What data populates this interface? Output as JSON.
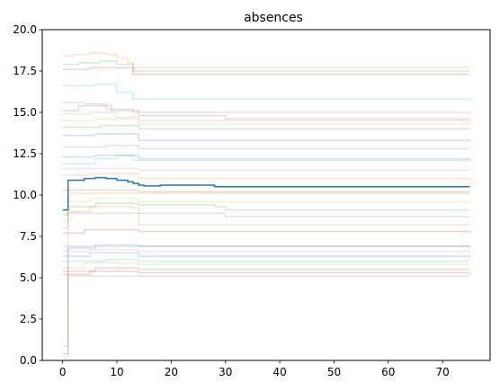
{
  "chart_data": {
    "type": "line",
    "title": "absences",
    "xlabel": "",
    "ylabel": "",
    "xlim": [
      -3.75,
      78.75
    ],
    "ylim": [
      0,
      20
    ],
    "xticks": [
      0,
      10,
      20,
      30,
      40,
      50,
      60,
      70
    ],
    "yticks": [
      0.0,
      2.5,
      5.0,
      7.5,
      10.0,
      12.5,
      15.0,
      17.5,
      20.0
    ],
    "ytick_labels": [
      "0.0",
      "2.5",
      "5.0",
      "7.5",
      "10.0",
      "12.5",
      "15.0",
      "17.5",
      "20.0"
    ],
    "grid": false,
    "legend": "none",
    "main_series": {
      "color": "#1f77b4",
      "points": [
        [
          0,
          9.1
        ],
        [
          0.8,
          9.1
        ],
        [
          1,
          10.9
        ],
        [
          4,
          11.0
        ],
        [
          6,
          11.05
        ],
        [
          8,
          11.0
        ],
        [
          10,
          10.9
        ],
        [
          12,
          10.8
        ],
        [
          13,
          10.7
        ],
        [
          14,
          10.6
        ],
        [
          15,
          10.55
        ],
        [
          18,
          10.6
        ],
        [
          25,
          10.6
        ],
        [
          28,
          10.5
        ],
        [
          30,
          10.5
        ],
        [
          75,
          10.5
        ]
      ]
    },
    "background_series": {
      "opacity": 0.22,
      "series": [
        {
          "color": "#ff7f0e",
          "points": [
            [
              0,
              18.4
            ],
            [
              2,
              18.5
            ],
            [
              5,
              18.6
            ],
            [
              8,
              18.5
            ],
            [
              10,
              18.3
            ],
            [
              12,
              18.0
            ],
            [
              13,
              17.7
            ],
            [
              15,
              17.7
            ],
            [
              75,
              17.7
            ]
          ]
        },
        {
          "color": "#2ca02c",
          "points": [
            [
              0,
              17.9
            ],
            [
              3,
              18.0
            ],
            [
              7,
              18.1
            ],
            [
              10,
              17.9
            ],
            [
              13,
              17.5
            ],
            [
              75,
              17.5
            ]
          ]
        },
        {
          "color": "#d62728",
          "points": [
            [
              0,
              17.6
            ],
            [
              5,
              17.7
            ],
            [
              13,
              17.3
            ],
            [
              75,
              17.3
            ]
          ]
        },
        {
          "color": "#17becf",
          "points": [
            [
              0,
              16.6
            ],
            [
              6,
              16.7
            ],
            [
              10,
              16.2
            ],
            [
              13,
              15.8
            ],
            [
              75,
              15.7
            ]
          ]
        },
        {
          "color": "#9467bd",
          "points": [
            [
              0,
              15.6
            ],
            [
              4,
              15.5
            ],
            [
              8,
              15.2
            ],
            [
              13,
              15.0
            ],
            [
              75,
              14.9
            ]
          ]
        },
        {
          "color": "#8c564b",
          "points": [
            [
              0,
              15.1
            ],
            [
              3,
              15.4
            ],
            [
              6,
              15.4
            ],
            [
              9,
              15.1
            ],
            [
              14,
              14.8
            ],
            [
              28,
              14.8
            ],
            [
              30,
              14.6
            ],
            [
              75,
              14.6
            ]
          ]
        },
        {
          "color": "#e377c2",
          "points": [
            [
              0,
              14.9
            ],
            [
              5,
              15.0
            ],
            [
              10,
              14.7
            ],
            [
              14,
              14.5
            ],
            [
              75,
              14.4
            ]
          ]
        },
        {
          "color": "#bcbd22",
          "points": [
            [
              0,
              14.5
            ],
            [
              6,
              14.6
            ],
            [
              14,
              14.3
            ],
            [
              75,
              14.2
            ]
          ]
        },
        {
          "color": "#2ca02c",
          "points": [
            [
              0,
              14.1
            ],
            [
              7,
              14.2
            ],
            [
              14,
              14.0
            ],
            [
              75,
              14.0
            ]
          ]
        },
        {
          "color": "#1f77b4",
          "points": [
            [
              0,
              13.6
            ],
            [
              6,
              13.7
            ],
            [
              14,
              13.3
            ],
            [
              75,
              13.2
            ]
          ]
        },
        {
          "color": "#9467bd",
          "points": [
            [
              0,
              12.9
            ],
            [
              8,
              13.0
            ],
            [
              14,
              12.8
            ],
            [
              75,
              12.8
            ]
          ]
        },
        {
          "color": "#1f77b4",
          "points": [
            [
              0,
              12.3
            ],
            [
              6,
              12.4
            ],
            [
              14,
              12.2
            ],
            [
              75,
              12.1
            ]
          ]
        },
        {
          "color": "#17becf",
          "points": [
            [
              0,
              11.9
            ],
            [
              6,
              12.2
            ],
            [
              10,
              12.4
            ],
            [
              13,
              12.1
            ],
            [
              75,
              12.0
            ]
          ]
        },
        {
          "color": "#e377c2",
          "points": [
            [
              0,
              11.6
            ],
            [
              8,
              11.6
            ],
            [
              14,
              11.5
            ],
            [
              75,
              11.5
            ]
          ]
        },
        {
          "color": "#ff7f0e",
          "points": [
            [
              0,
              11.2
            ],
            [
              5,
              11.3
            ],
            [
              14,
              11.0
            ],
            [
              75,
              10.9
            ]
          ]
        },
        {
          "color": "#8c564b",
          "points": [
            [
              0,
              10.3
            ],
            [
              8,
              10.3
            ],
            [
              14,
              10.2
            ],
            [
              75,
              10.2
            ]
          ]
        },
        {
          "color": "#bcbd22",
          "points": [
            [
              0,
              9.6
            ],
            [
              5,
              9.8
            ],
            [
              14,
              9.6
            ],
            [
              75,
              9.6
            ]
          ]
        },
        {
          "color": "#2ca02c",
          "points": [
            [
              0,
              8.8
            ],
            [
              1,
              9.3
            ],
            [
              6,
              9.5
            ],
            [
              14,
              9.4
            ],
            [
              28,
              9.3
            ],
            [
              30,
              9.1
            ],
            [
              75,
              9.1
            ]
          ]
        },
        {
          "color": "#ff7f0e",
          "points": [
            [
              0,
              8.4
            ],
            [
              1,
              9.0
            ],
            [
              5,
              9.3
            ],
            [
              13,
              9.2
            ],
            [
              14,
              8.2
            ],
            [
              75,
              8.2
            ]
          ]
        },
        {
          "color": "#7f7f7f",
          "points": [
            [
              0,
              8.0
            ],
            [
              1,
              8.9
            ],
            [
              10,
              8.9
            ],
            [
              14,
              8.9
            ],
            [
              28,
              8.9
            ],
            [
              30,
              8.7
            ],
            [
              75,
              8.7
            ]
          ]
        },
        {
          "color": "#d62728",
          "points": [
            [
              0,
              7.7
            ],
            [
              4,
              7.9
            ],
            [
              14,
              7.8
            ],
            [
              75,
              7.7
            ]
          ]
        },
        {
          "color": "#9467bd",
          "points": [
            [
              0,
              6.9
            ],
            [
              6,
              7.0
            ],
            [
              14,
              6.9
            ],
            [
              75,
              6.9
            ]
          ]
        },
        {
          "color": "#e377c2",
          "points": [
            [
              0,
              6.6
            ],
            [
              5,
              6.7
            ],
            [
              14,
              6.6
            ],
            [
              75,
              6.5
            ]
          ]
        },
        {
          "color": "#1f77b4",
          "points": [
            [
              0,
              6.3
            ],
            [
              5,
              6.5
            ],
            [
              14,
              6.3
            ],
            [
              75,
              6.2
            ]
          ]
        },
        {
          "color": "#17becf",
          "points": [
            [
              0,
              6.0
            ],
            [
              8,
              6.1
            ],
            [
              14,
              6.0
            ],
            [
              75,
              6.0
            ]
          ]
        },
        {
          "color": "#bcbd22",
          "points": [
            [
              0,
              5.6
            ],
            [
              4,
              5.9
            ],
            [
              14,
              5.8
            ],
            [
              75,
              5.8
            ]
          ]
        },
        {
          "color": "#8c564b",
          "points": [
            [
              0,
              5.4
            ],
            [
              6,
              5.6
            ],
            [
              14,
              5.5
            ],
            [
              75,
              5.5
            ]
          ]
        },
        {
          "color": "#d62728",
          "points": [
            [
              0,
              5.2
            ],
            [
              5,
              5.4
            ],
            [
              14,
              5.3
            ],
            [
              75,
              5.2
            ]
          ]
        },
        {
          "color": "#7f7f7f",
          "points": [
            [
              0,
              0.9
            ],
            [
              1,
              5.1
            ],
            [
              10,
              5.1
            ],
            [
              75,
              5.1
            ]
          ]
        },
        {
          "color": "#1f77b4",
          "points": [
            [
              0,
              0.4
            ],
            [
              1,
              6.8
            ],
            [
              6,
              6.9
            ],
            [
              75,
              6.8
            ]
          ]
        },
        {
          "color": "#ff7f0e",
          "points": [
            [
              0,
              0.2
            ],
            [
              1,
              10.1
            ],
            [
              8,
              10.1
            ],
            [
              75,
              10.0
            ]
          ]
        }
      ]
    }
  }
}
